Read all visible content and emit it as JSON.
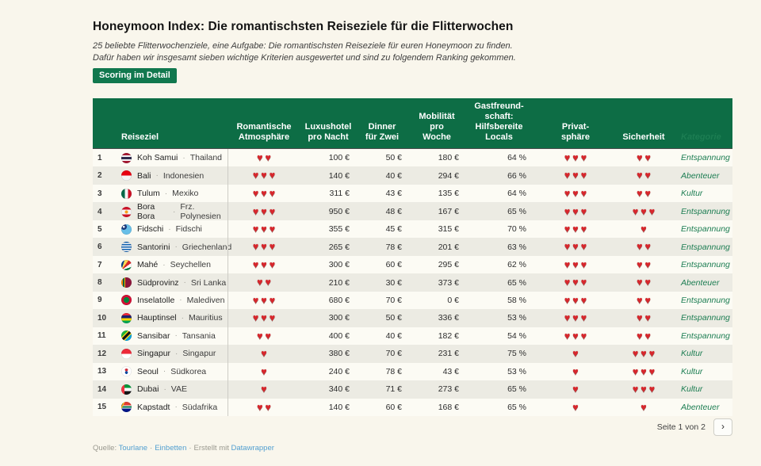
{
  "chart_data": {
    "type": "table",
    "title": "Honeymoon Index: Die romantischsten Reiseziele für die Flitterwochen",
    "intro": "25 beliebte Flitterwochenziele, eine Aufgabe: Die romantischsten Reiseziele für euren Honeymoon zu finden.\nDafür haben wir insgesamt sieben wichtige Kriterien ausgewertet und sind zu folgendem Ranking gekommen.",
    "badge_label": "Scoring im Detail",
    "heart_icon": "♥",
    "row_separator": "·",
    "hearts_max": 3,
    "columns": {
      "rank": "",
      "reiseziel": "Reiseziel",
      "romantic": "Romantische\nAtmosphäre",
      "hotel": "Luxushotel\npro Nacht",
      "dinner": "Dinner\nfür Zwei",
      "mobility": "Mobilität\npro\nWoche",
      "hospitality": "Gastfreund-\nschaft:\nHilfsbereite\nLocals",
      "privacy": "Privat-\nsphäre",
      "safety": "Sicherheit",
      "category": "Kategorie"
    },
    "rows": [
      {
        "rank": "1",
        "flag": "th",
        "destination": "Koh Samui",
        "country": "Thailand",
        "romantic": 2,
        "hotel": "100 €",
        "dinner": "50 €",
        "mobility": "180 €",
        "hospitality": "64 %",
        "privacy": 3,
        "safety": 2,
        "category": "Entspannung"
      },
      {
        "rank": "2",
        "flag": "id",
        "destination": "Bali",
        "country": "Indonesien",
        "romantic": 3,
        "hotel": "140 €",
        "dinner": "40 €",
        "mobility": "294 €",
        "hospitality": "66 %",
        "privacy": 3,
        "safety": 2,
        "category": "Abenteuer"
      },
      {
        "rank": "3",
        "flag": "mx",
        "destination": "Tulum",
        "country": "Mexiko",
        "romantic": 3,
        "hotel": "311 €",
        "dinner": "43 €",
        "mobility": "135 €",
        "hospitality": "64 %",
        "privacy": 3,
        "safety": 2,
        "category": "Kultur"
      },
      {
        "rank": "4",
        "flag": "pf",
        "destination": "Bora Bora",
        "country": "Frz. Polynesien",
        "romantic": 3,
        "hotel": "950 €",
        "dinner": "48 €",
        "mobility": "167 €",
        "hospitality": "65 %",
        "privacy": 3,
        "safety": 3,
        "category": "Entspannung"
      },
      {
        "rank": "5",
        "flag": "fj",
        "destination": "Fidschi",
        "country": "Fidschi",
        "romantic": 3,
        "hotel": "355 €",
        "dinner": "45 €",
        "mobility": "315 €",
        "hospitality": "70 %",
        "privacy": 3,
        "safety": 1,
        "category": "Entspannung"
      },
      {
        "rank": "6",
        "flag": "gr",
        "destination": "Santorini",
        "country": "Griechenland",
        "romantic": 3,
        "hotel": "265 €",
        "dinner": "78 €",
        "mobility": "201 €",
        "hospitality": "63 %",
        "privacy": 3,
        "safety": 2,
        "category": "Entspannung"
      },
      {
        "rank": "7",
        "flag": "sc",
        "destination": "Mahé",
        "country": "Seychellen",
        "romantic": 3,
        "hotel": "300 €",
        "dinner": "60 €",
        "mobility": "295 €",
        "hospitality": "62 %",
        "privacy": 3,
        "safety": 2,
        "category": "Entspannung"
      },
      {
        "rank": "8",
        "flag": "lk",
        "destination": "Südprovinz",
        "country": "Sri Lanka",
        "romantic": 2,
        "hotel": "210 €",
        "dinner": "30 €",
        "mobility": "373 €",
        "hospitality": "65 %",
        "privacy": 3,
        "safety": 2,
        "category": "Abenteuer"
      },
      {
        "rank": "9",
        "flag": "mv",
        "destination": "Inselatolle",
        "country": "Malediven",
        "romantic": 3,
        "hotel": "680 €",
        "dinner": "70 €",
        "mobility": "0 €",
        "hospitality": "58 %",
        "privacy": 3,
        "safety": 2,
        "category": "Entspannung"
      },
      {
        "rank": "10",
        "flag": "mu",
        "destination": "Hauptinsel",
        "country": "Mauritius",
        "romantic": 3,
        "hotel": "300 €",
        "dinner": "50 €",
        "mobility": "336 €",
        "hospitality": "53 %",
        "privacy": 3,
        "safety": 2,
        "category": "Entspannung"
      },
      {
        "rank": "11",
        "flag": "tz",
        "destination": "Sansibar",
        "country": "Tansania",
        "romantic": 2,
        "hotel": "400 €",
        "dinner": "40 €",
        "mobility": "182 €",
        "hospitality": "54 %",
        "privacy": 3,
        "safety": 2,
        "category": "Entspannung"
      },
      {
        "rank": "12",
        "flag": "sg",
        "destination": "Singapur",
        "country": "Singapur",
        "romantic": 1,
        "hotel": "380 €",
        "dinner": "70 €",
        "mobility": "231 €",
        "hospitality": "75 %",
        "privacy": 1,
        "safety": 3,
        "category": "Kultur"
      },
      {
        "rank": "13",
        "flag": "kr",
        "destination": "Seoul",
        "country": "Südkorea",
        "romantic": 1,
        "hotel": "240 €",
        "dinner": "78 €",
        "mobility": "43 €",
        "hospitality": "53 %",
        "privacy": 1,
        "safety": 3,
        "category": "Kultur"
      },
      {
        "rank": "14",
        "flag": "ae",
        "destination": "Dubai",
        "country": "VAE",
        "romantic": 1,
        "hotel": "340 €",
        "dinner": "71 €",
        "mobility": "273 €",
        "hospitality": "65 %",
        "privacy": 1,
        "safety": 3,
        "category": "Kultur"
      },
      {
        "rank": "15",
        "flag": "za",
        "destination": "Kapstadt",
        "country": "Südafrika",
        "romantic": 2,
        "hotel": "140 €",
        "dinner": "60 €",
        "mobility": "168 €",
        "hospitality": "65 %",
        "privacy": 1,
        "safety": 1,
        "category": "Abenteuer"
      }
    ]
  },
  "pager": {
    "label": "Seite 1 von 2",
    "next_icon": "›"
  },
  "attribution": {
    "prefix": "Quelle:",
    "source_link": "Tourlane",
    "separator": "·",
    "embed_link": "Einbetten",
    "made_with": "Erstellt mit",
    "tool_link": "Datawrapper"
  },
  "colors": {
    "page_background": "#f9f6ec",
    "header_green": "#0d6d45",
    "badge_green": "#11784e",
    "category_green": "#1c7d52",
    "heart_red": "#d8262c",
    "link_blue": "#529fd0",
    "row_odd": "#fcfbf4",
    "row_even": "#ecebe3"
  }
}
